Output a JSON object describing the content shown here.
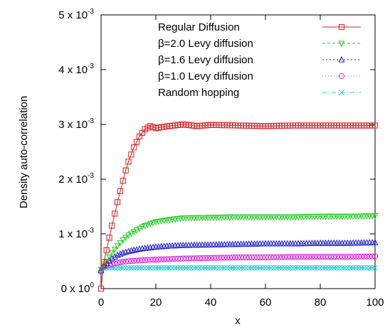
{
  "chart_data": {
    "type": "line",
    "title": "",
    "xlabel": "x",
    "ylabel": "Density auto-correlation",
    "xlim": [
      0,
      100
    ],
    "ylim": [
      0,
      0.005
    ],
    "x_ticks": [
      0,
      20,
      40,
      60,
      80,
      100
    ],
    "x_tick_labels": [
      "0",
      "20",
      "40",
      "60",
      "80",
      "100"
    ],
    "y_ticks": [
      0,
      0.001,
      0.002,
      0.003,
      0.004,
      0.005
    ],
    "y_tick_labels": [
      {
        "mantissa": "0 x 10",
        "exp": "0"
      },
      {
        "mantissa": "1 x 10",
        "exp": "-3"
      },
      {
        "mantissa": "2 x 10",
        "exp": "-3"
      },
      {
        "mantissa": "3 x 10",
        "exp": "-3"
      },
      {
        "mantissa": "4 x 10",
        "exp": "-3"
      },
      {
        "mantissa": "5 x 10",
        "exp": "-3"
      }
    ],
    "grid": false,
    "legend_position": "top-right",
    "series": [
      {
        "name": "Regular Diffusion",
        "color": "#e41a1c",
        "marker": "square",
        "dash": "",
        "x": [
          0,
          1,
          2,
          3,
          4,
          5,
          6,
          7,
          8,
          9,
          10,
          12,
          14,
          16,
          18,
          20,
          22,
          25,
          30,
          35,
          40,
          50,
          60,
          70,
          80,
          90,
          100
        ],
        "y": [
          0,
          0.00048,
          0.0007,
          0.00093,
          0.00115,
          0.00137,
          0.00158,
          0.00178,
          0.00197,
          0.00216,
          0.00232,
          0.00258,
          0.00278,
          0.00291,
          0.00297,
          0.00293,
          0.00295,
          0.00297,
          0.003,
          0.00297,
          0.00299,
          0.00298,
          0.00297,
          0.00298,
          0.00298,
          0.00298,
          0.00298
        ]
      },
      {
        "name": "β=2.0 Levy diffusion",
        "color": "#22cc22",
        "marker": "triangle-down",
        "dash": "4,3",
        "x": [
          0,
          1,
          2,
          4,
          6,
          8,
          10,
          15,
          20,
          25,
          30,
          40,
          50,
          60,
          70,
          80,
          90,
          100
        ],
        "y": [
          0.00035,
          0.00045,
          0.0005,
          0.00066,
          0.00078,
          0.00089,
          0.00098,
          0.00113,
          0.00122,
          0.00126,
          0.00129,
          0.0013,
          0.00131,
          0.00131,
          0.00131,
          0.00132,
          0.00132,
          0.00133
        ]
      },
      {
        "name": "β=1.6 Levy diffusion",
        "color": "#1b1bd6",
        "marker": "triangle-up",
        "dash": "2,3",
        "x": [
          0,
          1,
          2,
          4,
          6,
          8,
          10,
          15,
          20,
          25,
          30,
          40,
          50,
          60,
          70,
          80,
          90,
          100
        ],
        "y": [
          0.00033,
          0.00042,
          0.00046,
          0.00055,
          0.00061,
          0.00065,
          0.00068,
          0.00073,
          0.00076,
          0.00078,
          0.00079,
          0.0008,
          0.00081,
          0.00082,
          0.00082,
          0.00083,
          0.00083,
          0.00084
        ]
      },
      {
        "name": "β=1.0 Levy diffusion",
        "color": "#dd22dd",
        "marker": "circle",
        "dash": "1,3",
        "x": [
          0,
          1,
          2,
          4,
          6,
          8,
          10,
          15,
          20,
          25,
          30,
          40,
          50,
          60,
          70,
          80,
          90,
          100
        ],
        "y": [
          0.00031,
          0.0004,
          0.00042,
          0.00045,
          0.00047,
          0.00049,
          0.0005,
          0.00052,
          0.00053,
          0.00054,
          0.00055,
          0.00056,
          0.00057,
          0.00057,
          0.00058,
          0.00058,
          0.00058,
          0.00059
        ]
      },
      {
        "name": "Random hopping",
        "color": "#22cccc",
        "marker": "x",
        "dash": "6,3,1,3",
        "x": [
          0,
          1,
          2,
          5,
          10,
          20,
          30,
          40,
          50,
          60,
          70,
          80,
          90,
          100
        ],
        "y": [
          0.00035,
          0.00037,
          0.00038,
          0.00038,
          0.00038,
          0.00038,
          0.00038,
          0.00038,
          0.00038,
          0.00038,
          0.00038,
          0.00038,
          0.00038,
          0.00038
        ]
      }
    ]
  }
}
